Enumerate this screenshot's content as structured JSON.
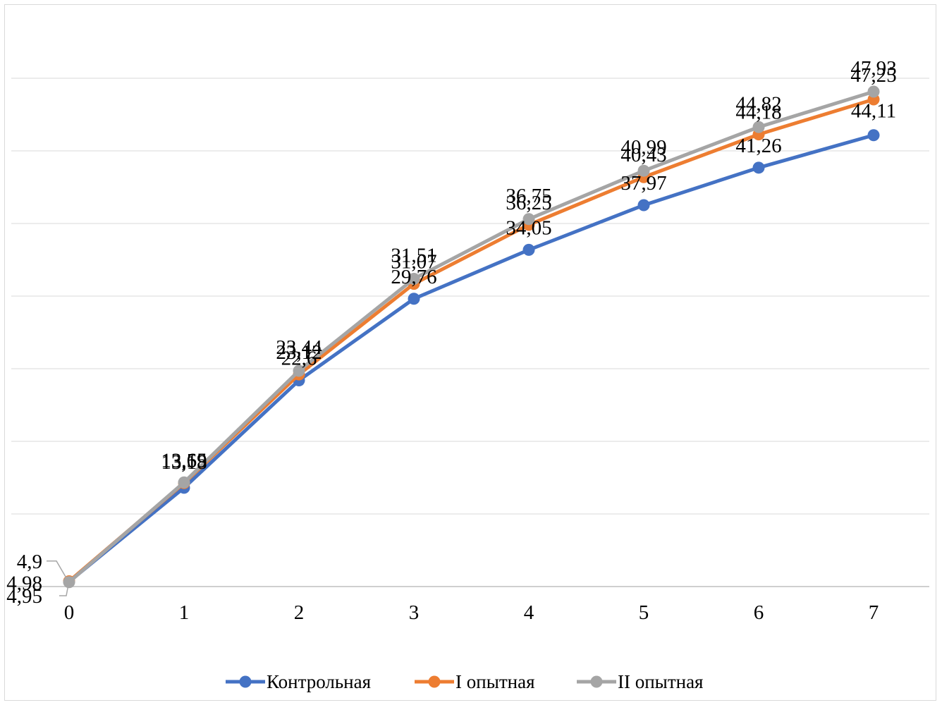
{
  "chart_data": {
    "type": "line",
    "x": [
      0,
      1,
      2,
      3,
      4,
      5,
      6,
      7
    ],
    "x_tick_labels": [
      "0",
      "1",
      "2",
      "3",
      "4",
      "5",
      "6",
      "7"
    ],
    "ylim": [
      0,
      50
    ],
    "grid": true,
    "legend_position": "bottom",
    "series": [
      {
        "name": "Контрольная",
        "color": "#4472c4",
        "values": [
          4.95,
          13.18,
          22.6,
          29.76,
          34.05,
          37.97,
          41.26,
          44.11
        ],
        "labels": [
          "4,95",
          "13,18",
          "22,6",
          "29,76",
          "34,05",
          "37,97",
          "41,26",
          "44,11"
        ]
      },
      {
        "name": "I опытная",
        "color": "#ed7d31",
        "values": [
          4.98,
          13.59,
          23.12,
          31.07,
          36.25,
          40.43,
          44.18,
          47.25
        ],
        "labels": [
          "4,98",
          "13,59",
          "23,12",
          "31,07",
          "36,25",
          "40,43",
          "44,18",
          "47,25"
        ]
      },
      {
        "name": "II опытная",
        "color": "#a5a5a5",
        "values": [
          4.9,
          13.65,
          23.44,
          31.51,
          36.75,
          40.99,
          44.82,
          47.93
        ],
        "labels": [
          "4,9",
          "13,65",
          "23,44",
          "31,51",
          "36,75",
          "40,99",
          "44,82",
          "47,93"
        ]
      }
    ]
  }
}
